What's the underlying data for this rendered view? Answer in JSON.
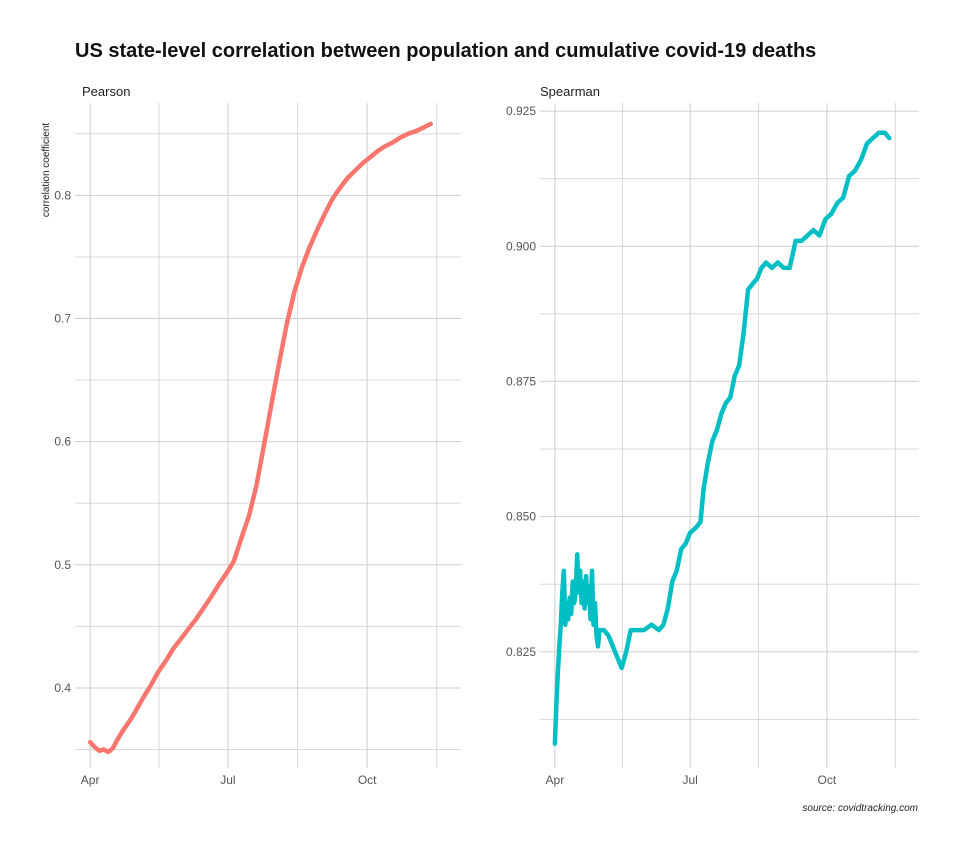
{
  "title": "US state-level correlation between population and cumulative covid-19 deaths",
  "caption": "source: covidtracking.com",
  "chart_data": [
    {
      "type": "line",
      "panel": "Pearson",
      "ylabel": "correlation coefficient",
      "color": "#F8766D",
      "x_ticks": [
        {
          "label": "Apr",
          "day": 0
        },
        {
          "label": "Jul",
          "day": 91
        },
        {
          "label": "Oct",
          "day": 183
        }
      ],
      "xlim": [
        -10,
        245
      ],
      "ylim": [
        0.335,
        0.875
      ],
      "y_ticks": [
        0.4,
        0.5,
        0.6,
        0.7,
        0.8
      ],
      "y_tick_labels": [
        "0.4",
        "0.5",
        "0.6",
        "0.7",
        "0.8"
      ],
      "series": [
        {
          "name": "Pearson",
          "points": [
            [
              0,
              0.356
            ],
            [
              3,
              0.352
            ],
            [
              6,
              0.349
            ],
            [
              9,
              0.35
            ],
            [
              12,
              0.348
            ],
            [
              15,
              0.351
            ],
            [
              18,
              0.358
            ],
            [
              22,
              0.366
            ],
            [
              26,
              0.373
            ],
            [
              30,
              0.381
            ],
            [
              35,
              0.392
            ],
            [
              40,
              0.402
            ],
            [
              45,
              0.413
            ],
            [
              50,
              0.422
            ],
            [
              55,
              0.432
            ],
            [
              60,
              0.44
            ],
            [
              65,
              0.448
            ],
            [
              70,
              0.456
            ],
            [
              75,
              0.465
            ],
            [
              80,
              0.474
            ],
            [
              85,
              0.484
            ],
            [
              90,
              0.493
            ],
            [
              95,
              0.503
            ],
            [
              100,
              0.522
            ],
            [
              105,
              0.54
            ],
            [
              110,
              0.565
            ],
            [
              115,
              0.598
            ],
            [
              120,
              0.632
            ],
            [
              125,
              0.665
            ],
            [
              130,
              0.696
            ],
            [
              135,
              0.722
            ],
            [
              140,
              0.742
            ],
            [
              145,
              0.758
            ],
            [
              150,
              0.772
            ],
            [
              155,
              0.785
            ],
            [
              160,
              0.797
            ],
            [
              165,
              0.806
            ],
            [
              170,
              0.814
            ],
            [
              175,
              0.82
            ],
            [
              180,
              0.826
            ],
            [
              185,
              0.831
            ],
            [
              190,
              0.836
            ],
            [
              195,
              0.84
            ],
            [
              200,
              0.843
            ],
            [
              205,
              0.847
            ],
            [
              210,
              0.85
            ],
            [
              215,
              0.852
            ],
            [
              220,
              0.855
            ],
            [
              225,
              0.858
            ]
          ]
        }
      ]
    },
    {
      "type": "line",
      "panel": "Spearman",
      "ylabel": "",
      "color": "#00BFC4",
      "x_ticks": [
        {
          "label": "Apr",
          "day": 0
        },
        {
          "label": "Jul",
          "day": 91
        },
        {
          "label": "Oct",
          "day": 183
        }
      ],
      "xlim": [
        -10,
        245
      ],
      "ylim": [
        0.8035,
        0.9265
      ],
      "y_ticks": [
        0.825,
        0.85,
        0.875,
        0.9,
        0.925
      ],
      "y_tick_labels": [
        "0.825",
        "0.850",
        "0.875",
        "0.900",
        "0.925"
      ],
      "series": [
        {
          "name": "Spearman",
          "points": [
            [
              0,
              0.808
            ],
            [
              1,
              0.815
            ],
            [
              2,
              0.821
            ],
            [
              3,
              0.826
            ],
            [
              4,
              0.83
            ],
            [
              5,
              0.836
            ],
            [
              6,
              0.84
            ],
            [
              7,
              0.83
            ],
            [
              8,
              0.834
            ],
            [
              9,
              0.831
            ],
            [
              10,
              0.835
            ],
            [
              11,
              0.832
            ],
            [
              12,
              0.838
            ],
            [
              13,
              0.834
            ],
            [
              14,
              0.836
            ],
            [
              15,
              0.843
            ],
            [
              16,
              0.836
            ],
            [
              17,
              0.84
            ],
            [
              18,
              0.834
            ],
            [
              19,
              0.838
            ],
            [
              20,
              0.833
            ],
            [
              21,
              0.839
            ],
            [
              22,
              0.834
            ],
            [
              23,
              0.837
            ],
            [
              24,
              0.831
            ],
            [
              25,
              0.84
            ],
            [
              26,
              0.83
            ],
            [
              27,
              0.834
            ],
            [
              28,
              0.828
            ],
            [
              29,
              0.826
            ],
            [
              30,
              0.829
            ],
            [
              33,
              0.829
            ],
            [
              36,
              0.828
            ],
            [
              39,
              0.826
            ],
            [
              42,
              0.824
            ],
            [
              45,
              0.822
            ],
            [
              48,
              0.825
            ],
            [
              51,
              0.829
            ],
            [
              55,
              0.829
            ],
            [
              60,
              0.829
            ],
            [
              65,
              0.83
            ],
            [
              70,
              0.829
            ],
            [
              73,
              0.83
            ],
            [
              76,
              0.833
            ],
            [
              79,
              0.838
            ],
            [
              82,
              0.84
            ],
            [
              85,
              0.844
            ],
            [
              88,
              0.845
            ],
            [
              91,
              0.847
            ],
            [
              95,
              0.848
            ],
            [
              98,
              0.849
            ],
            [
              100,
              0.855
            ],
            [
              103,
              0.86
            ],
            [
              106,
              0.864
            ],
            [
              109,
              0.866
            ],
            [
              112,
              0.869
            ],
            [
              115,
              0.871
            ],
            [
              118,
              0.872
            ],
            [
              121,
              0.876
            ],
            [
              124,
              0.878
            ],
            [
              127,
              0.884
            ],
            [
              130,
              0.892
            ],
            [
              133,
              0.893
            ],
            [
              136,
              0.894
            ],
            [
              139,
              0.896
            ],
            [
              142,
              0.897
            ],
            [
              146,
              0.896
            ],
            [
              150,
              0.897
            ],
            [
              154,
              0.896
            ],
            [
              158,
              0.896
            ],
            [
              162,
              0.901
            ],
            [
              166,
              0.901
            ],
            [
              170,
              0.902
            ],
            [
              174,
              0.903
            ],
            [
              178,
              0.902
            ],
            [
              182,
              0.905
            ],
            [
              186,
              0.906
            ],
            [
              190,
              0.908
            ],
            [
              194,
              0.909
            ],
            [
              198,
              0.913
            ],
            [
              202,
              0.914
            ],
            [
              206,
              0.916
            ],
            [
              210,
              0.919
            ],
            [
              214,
              0.92
            ],
            [
              218,
              0.921
            ],
            [
              222,
              0.921
            ],
            [
              225,
              0.92
            ]
          ]
        }
      ]
    }
  ]
}
